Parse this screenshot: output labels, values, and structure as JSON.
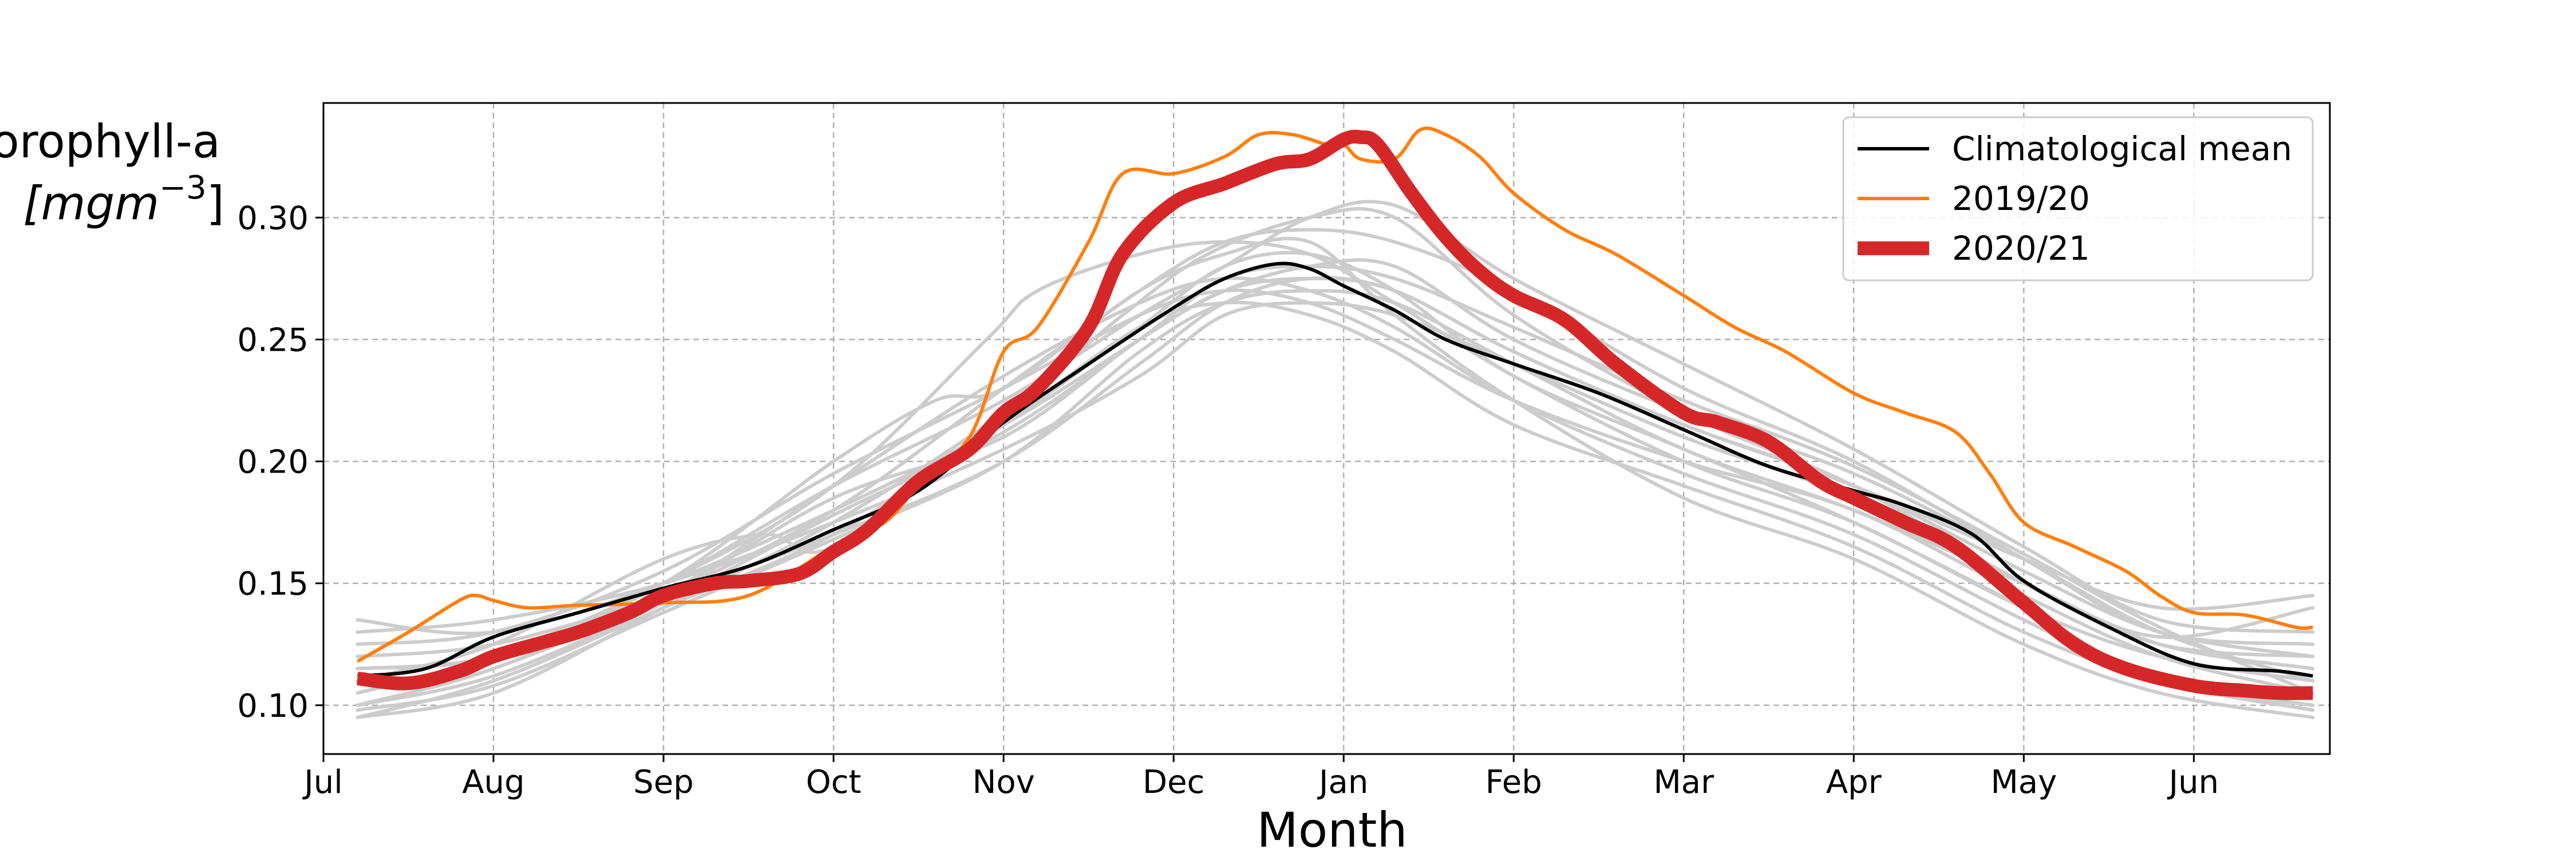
{
  "chart_data": {
    "type": "line",
    "title": "",
    "xlabel": "Month",
    "ylabel": "Chlorophyll-a",
    "ylabel_unit": "[mgm",
    "ylabel_unit_exponent": "−3",
    "ylabel_unit_close": "]",
    "x_unit": "month",
    "xlim": [
      0,
      11.8
    ],
    "ylim": [
      0.08,
      0.347
    ],
    "x_ticks": [
      {
        "value": 0,
        "label": "Jul"
      },
      {
        "value": 1,
        "label": "Aug"
      },
      {
        "value": 2,
        "label": "Sep"
      },
      {
        "value": 3,
        "label": "Oct"
      },
      {
        "value": 4,
        "label": "Nov"
      },
      {
        "value": 5,
        "label": "Dec"
      },
      {
        "value": 6,
        "label": "Jan"
      },
      {
        "value": 7,
        "label": "Feb"
      },
      {
        "value": 8,
        "label": "Mar"
      },
      {
        "value": 9,
        "label": "Apr"
      },
      {
        "value": 10,
        "label": "May"
      },
      {
        "value": 11,
        "label": "Jun"
      }
    ],
    "y_ticks": [
      {
        "value": 0.1,
        "label": "0.10"
      },
      {
        "value": 0.15,
        "label": "0.15"
      },
      {
        "value": 0.2,
        "label": "0.20"
      },
      {
        "value": 0.25,
        "label": "0.25"
      },
      {
        "value": 0.3,
        "label": "0.30"
      }
    ],
    "grid": true,
    "legend": {
      "position": "top-right",
      "entries": [
        "Climatological mean",
        "2019/20",
        "2020/21"
      ]
    },
    "series": [
      {
        "name": "Climatological mean",
        "color": "#000000",
        "x": [
          0.2,
          0.6,
          1.0,
          1.5,
          2.0,
          2.5,
          3.0,
          3.5,
          4.0,
          4.5,
          5.0,
          5.3,
          5.6,
          5.8,
          6.0,
          6.3,
          6.6,
          7.0,
          7.5,
          8.0,
          8.5,
          9.0,
          9.3,
          9.7,
          10.0,
          10.5,
          11.0,
          11.5,
          11.7
        ],
        "y": [
          0.112,
          0.115,
          0.128,
          0.138,
          0.148,
          0.157,
          0.172,
          0.188,
          0.216,
          0.24,
          0.263,
          0.275,
          0.281,
          0.279,
          0.272,
          0.262,
          0.25,
          0.24,
          0.228,
          0.213,
          0.198,
          0.188,
          0.182,
          0.17,
          0.151,
          0.132,
          0.117,
          0.114,
          0.112
        ]
      },
      {
        "name": "2019/20",
        "color": "#ff7f0e",
        "x": [
          0.2,
          0.5,
          0.8,
          0.9,
          1.0,
          1.2,
          1.5,
          2.0,
          2.5,
          3.0,
          3.3,
          3.5,
          3.8,
          4.0,
          4.2,
          4.5,
          4.7,
          5.0,
          5.3,
          5.5,
          5.7,
          5.9,
          6.0,
          6.1,
          6.3,
          6.45,
          6.6,
          6.8,
          7.0,
          7.3,
          7.6,
          8.0,
          8.3,
          8.6,
          9.0,
          9.3,
          9.6,
          9.8,
          10.0,
          10.3,
          10.6,
          10.8,
          11.0,
          11.3,
          11.6,
          11.7
        ],
        "y": [
          0.118,
          0.13,
          0.143,
          0.145,
          0.143,
          0.14,
          0.141,
          0.142,
          0.145,
          0.165,
          0.175,
          0.19,
          0.21,
          0.245,
          0.255,
          0.29,
          0.318,
          0.318,
          0.325,
          0.334,
          0.334,
          0.33,
          0.33,
          0.324,
          0.324,
          0.336,
          0.334,
          0.325,
          0.31,
          0.295,
          0.285,
          0.268,
          0.255,
          0.245,
          0.228,
          0.22,
          0.212,
          0.195,
          0.175,
          0.165,
          0.155,
          0.145,
          0.138,
          0.137,
          0.132,
          0.132
        ]
      },
      {
        "name": "2020/21",
        "color": "#d62728",
        "x": [
          0.2,
          0.5,
          0.8,
          1.0,
          1.3,
          1.5,
          1.8,
          2.0,
          2.3,
          2.5,
          2.8,
          3.0,
          3.2,
          3.5,
          3.8,
          4.0,
          4.2,
          4.5,
          4.7,
          5.0,
          5.3,
          5.6,
          5.8,
          6.0,
          6.1,
          6.2,
          6.4,
          6.6,
          6.8,
          7.0,
          7.3,
          7.6,
          8.0,
          8.2,
          8.5,
          8.8,
          9.0,
          9.3,
          9.6,
          10.0,
          10.3,
          10.6,
          11.0,
          11.3,
          11.5,
          11.7
        ],
        "y": [
          0.111,
          0.109,
          0.114,
          0.12,
          0.126,
          0.13,
          0.138,
          0.145,
          0.15,
          0.151,
          0.154,
          0.163,
          0.172,
          0.192,
          0.205,
          0.22,
          0.23,
          0.255,
          0.285,
          0.306,
          0.314,
          0.322,
          0.324,
          0.332,
          0.333,
          0.33,
          0.31,
          0.292,
          0.278,
          0.268,
          0.258,
          0.24,
          0.22,
          0.216,
          0.208,
          0.192,
          0.185,
          0.175,
          0.165,
          0.142,
          0.125,
          0.115,
          0.108,
          0.106,
          0.105,
          0.105
        ]
      }
    ],
    "background_series_color": "#cccccc",
    "background_series": [
      {
        "x": [
          0.2,
          1.0,
          2.0,
          3.0,
          4.0,
          4.7,
          5.2,
          5.8,
          6.3,
          7.0,
          8.0,
          9.0,
          10.0,
          10.8,
          11.7
        ],
        "y": [
          0.095,
          0.105,
          0.14,
          0.175,
          0.22,
          0.26,
          0.285,
          0.3,
          0.3,
          0.26,
          0.22,
          0.19,
          0.15,
          0.125,
          0.12
        ]
      },
      {
        "x": [
          0.2,
          1.0,
          2.0,
          3.0,
          4.0,
          4.8,
          5.3,
          5.8,
          6.3,
          7.0,
          8.0,
          9.0,
          10.0,
          10.8,
          11.7
        ],
        "y": [
          0.1,
          0.115,
          0.145,
          0.18,
          0.23,
          0.27,
          0.29,
          0.295,
          0.29,
          0.27,
          0.23,
          0.2,
          0.16,
          0.13,
          0.125
        ]
      },
      {
        "x": [
          0.2,
          1.0,
          2.0,
          3.0,
          4.0,
          4.8,
          5.3,
          5.8,
          6.3,
          7.0,
          8.0,
          9.0,
          10.0,
          10.8,
          11.7
        ],
        "y": [
          0.105,
          0.12,
          0.15,
          0.19,
          0.225,
          0.26,
          0.28,
          0.3,
          0.305,
          0.275,
          0.24,
          0.205,
          0.165,
          0.135,
          0.13
        ]
      },
      {
        "x": [
          0.2,
          1.0,
          2.0,
          3.0,
          4.0,
          4.8,
          5.3,
          5.8,
          6.3,
          7.0,
          8.0,
          9.0,
          10.0,
          10.8,
          11.7
        ],
        "y": [
          0.12,
          0.125,
          0.145,
          0.17,
          0.2,
          0.24,
          0.265,
          0.275,
          0.27,
          0.245,
          0.215,
          0.19,
          0.155,
          0.13,
          0.12
        ]
      },
      {
        "x": [
          0.2,
          1.0,
          2.0,
          3.0,
          4.0,
          4.8,
          5.3,
          5.8,
          6.3,
          7.0,
          8.0,
          9.0,
          10.0,
          10.8,
          11.7
        ],
        "y": [
          0.13,
          0.135,
          0.15,
          0.175,
          0.205,
          0.235,
          0.26,
          0.265,
          0.26,
          0.24,
          0.21,
          0.185,
          0.15,
          0.125,
          0.115
        ]
      },
      {
        "x": [
          0.2,
          1.0,
          2.0,
          3.0,
          4.0,
          4.8,
          5.3,
          5.8,
          6.3,
          7.0,
          8.0,
          9.0,
          10.0,
          10.8,
          11.7
        ],
        "y": [
          0.115,
          0.12,
          0.145,
          0.185,
          0.21,
          0.25,
          0.27,
          0.28,
          0.28,
          0.25,
          0.22,
          0.195,
          0.16,
          0.13,
          0.11
        ]
      },
      {
        "x": [
          0.2,
          1.0,
          2.0,
          3.0,
          4.0,
          4.8,
          5.3,
          5.8,
          6.3,
          7.0,
          8.0,
          9.0,
          10.0,
          10.8,
          11.7
        ],
        "y": [
          0.095,
          0.11,
          0.14,
          0.17,
          0.215,
          0.255,
          0.28,
          0.285,
          0.27,
          0.235,
          0.205,
          0.175,
          0.14,
          0.11,
          0.1
        ]
      },
      {
        "x": [
          0.2,
          1.0,
          2.0,
          3.0,
          4.0,
          4.8,
          5.3,
          5.8,
          6.3,
          7.0,
          8.0,
          9.0,
          10.0,
          10.8,
          11.7
        ],
        "y": [
          0.1,
          0.115,
          0.145,
          0.19,
          0.235,
          0.265,
          0.275,
          0.27,
          0.255,
          0.225,
          0.195,
          0.17,
          0.135,
          0.11,
          0.098
        ]
      },
      {
        "x": [
          0.2,
          1.0,
          2.0,
          3.0,
          4.0,
          4.8,
          5.3,
          5.8,
          6.3,
          7.0,
          8.0,
          9.0,
          10.0,
          10.8,
          11.7
        ],
        "y": [
          0.125,
          0.13,
          0.155,
          0.195,
          0.23,
          0.26,
          0.27,
          0.265,
          0.25,
          0.225,
          0.2,
          0.18,
          0.145,
          0.12,
          0.105
        ]
      },
      {
        "x": [
          0.2,
          1.0,
          2.0,
          2.6,
          3.0,
          4.0,
          4.8,
          5.3,
          5.8,
          6.3,
          7.0,
          8.0,
          9.0,
          10.0,
          10.8,
          11.7
        ],
        "y": [
          0.11,
          0.125,
          0.16,
          0.17,
          0.165,
          0.215,
          0.255,
          0.265,
          0.26,
          0.245,
          0.215,
          0.19,
          0.165,
          0.13,
          0.11,
          0.1
        ]
      },
      {
        "x": [
          0.2,
          1.0,
          2.0,
          3.0,
          3.6,
          4.0,
          4.8,
          5.3,
          5.8,
          6.3,
          7.0,
          8.0,
          9.0,
          10.0,
          10.8,
          11.7
        ],
        "y": [
          0.105,
          0.12,
          0.15,
          0.2,
          0.225,
          0.23,
          0.27,
          0.285,
          0.29,
          0.26,
          0.225,
          0.185,
          0.16,
          0.125,
          0.105,
          0.095
        ]
      },
      {
        "x": [
          0.2,
          1.0,
          2.0,
          3.0,
          3.9,
          4.2,
          4.8,
          5.3,
          5.8,
          6.3,
          7.0,
          8.0,
          9.0,
          10.0,
          10.8,
          11.7
        ],
        "y": [
          0.115,
          0.12,
          0.15,
          0.19,
          0.25,
          0.27,
          0.285,
          0.29,
          0.285,
          0.265,
          0.235,
          0.2,
          0.175,
          0.14,
          0.12,
          0.11
        ]
      },
      {
        "x": [
          0.2,
          1.0,
          2.0,
          3.0,
          4.0,
          4.8,
          5.3,
          5.8,
          6.3,
          7.0,
          8.0,
          9.0,
          10.0,
          10.8,
          11.7
        ],
        "y": [
          0.098,
          0.108,
          0.138,
          0.168,
          0.2,
          0.245,
          0.265,
          0.27,
          0.265,
          0.24,
          0.205,
          0.18,
          0.15,
          0.128,
          0.14
        ]
      },
      {
        "x": [
          0.2,
          1.0,
          2.0,
          3.0,
          4.0,
          4.8,
          5.3,
          5.8,
          6.3,
          7.0,
          8.0,
          9.0,
          10.0,
          10.8,
          11.7
        ],
        "y": [
          0.135,
          0.13,
          0.15,
          0.18,
          0.215,
          0.25,
          0.27,
          0.275,
          0.27,
          0.245,
          0.215,
          0.19,
          0.16,
          0.14,
          0.145
        ]
      },
      {
        "x": [
          0.2,
          1.0,
          2.0,
          3.0,
          4.0,
          4.8,
          5.3,
          5.8,
          6.3,
          7.0,
          8.0,
          9.0,
          10.0,
          10.8,
          11.7
        ],
        "y": [
          0.1,
          0.112,
          0.142,
          0.178,
          0.212,
          0.25,
          0.275,
          0.28,
          0.275,
          0.255,
          0.225,
          0.198,
          0.162,
          0.132,
          0.105
        ]
      }
    ]
  }
}
